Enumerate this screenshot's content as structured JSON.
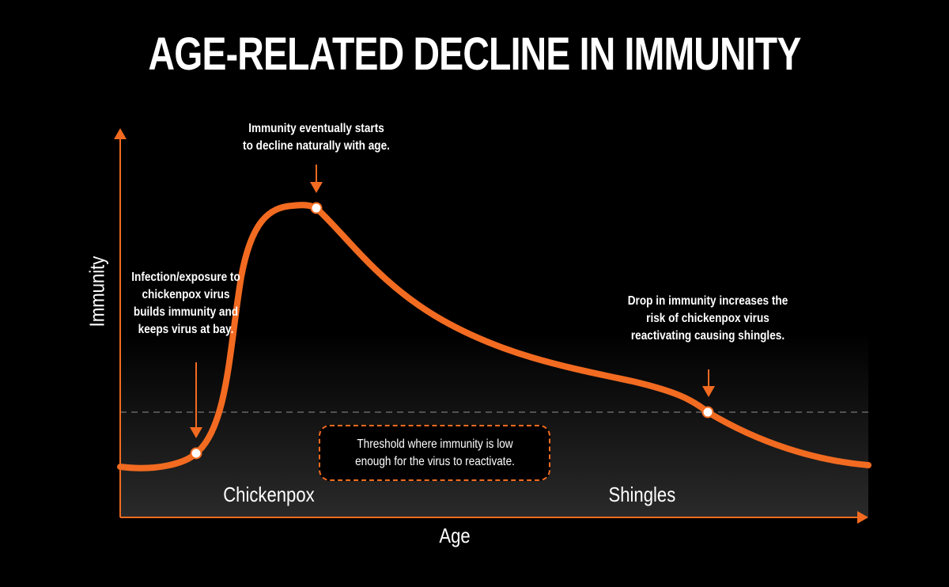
{
  "title": "AGE-RELATED DECLINE IN IMMUNITY",
  "axes": {
    "x_label": "Age",
    "y_label": "Immunity"
  },
  "annotations": {
    "peak": "Immunity eventually starts to decline naturally with age.",
    "infection": "Infection/exposure to chickenpox virus builds immunity and keeps virus at bay.",
    "drop": "Drop in immunity increases the risk of chickenpox virus reactivating causing shingles."
  },
  "threshold": {
    "label": "Threshold where immunity is low enough for the virus to reactivate."
  },
  "phases": {
    "chickenpox": "Chickenpox",
    "shingles": "Shingles"
  },
  "colors": {
    "curve": "#f26b21",
    "background": "#000000",
    "zone_bottom": "#2a2a2a",
    "threshold_line": "#666666"
  }
}
